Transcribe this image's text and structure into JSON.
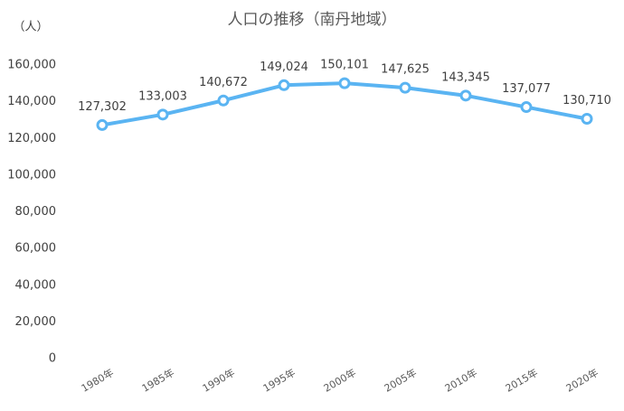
{
  "chart_data": {
    "type": "line",
    "title": "人口の推移（南丹地域）",
    "y_label": "（人）",
    "categories": [
      "1980年",
      "1985年",
      "1990年",
      "1995年",
      "2000年",
      "2005年",
      "2010年",
      "2015年",
      "2020年"
    ],
    "series": [
      {
        "name": "人口",
        "color": "#5ab4f2",
        "values": [
          127302,
          133003,
          140672,
          149024,
          150101,
          147625,
          143345,
          137077,
          130710
        ],
        "value_labels": [
          "127,302",
          "133,003",
          "140,672",
          "149,024",
          "150,101",
          "147,625",
          "143,345",
          "137,077",
          "130,710"
        ]
      }
    ],
    "ylim": [
      0,
      160000
    ],
    "yticks": [
      0,
      {
        "value": 20000,
        "label": "20,000"
      },
      {
        "value": 40000,
        "label": "40,000"
      },
      {
        "value": 60000,
        "label": "60,000"
      },
      {
        "value": 80000,
        "label": "80,000"
      },
      {
        "value": 100000,
        "label": "100,000"
      },
      {
        "value": 120000,
        "label": "120,000"
      },
      {
        "value": 140000,
        "label": "140,000"
      },
      {
        "value": 160000,
        "label": "160,000"
      }
    ],
    "grid": false
  }
}
